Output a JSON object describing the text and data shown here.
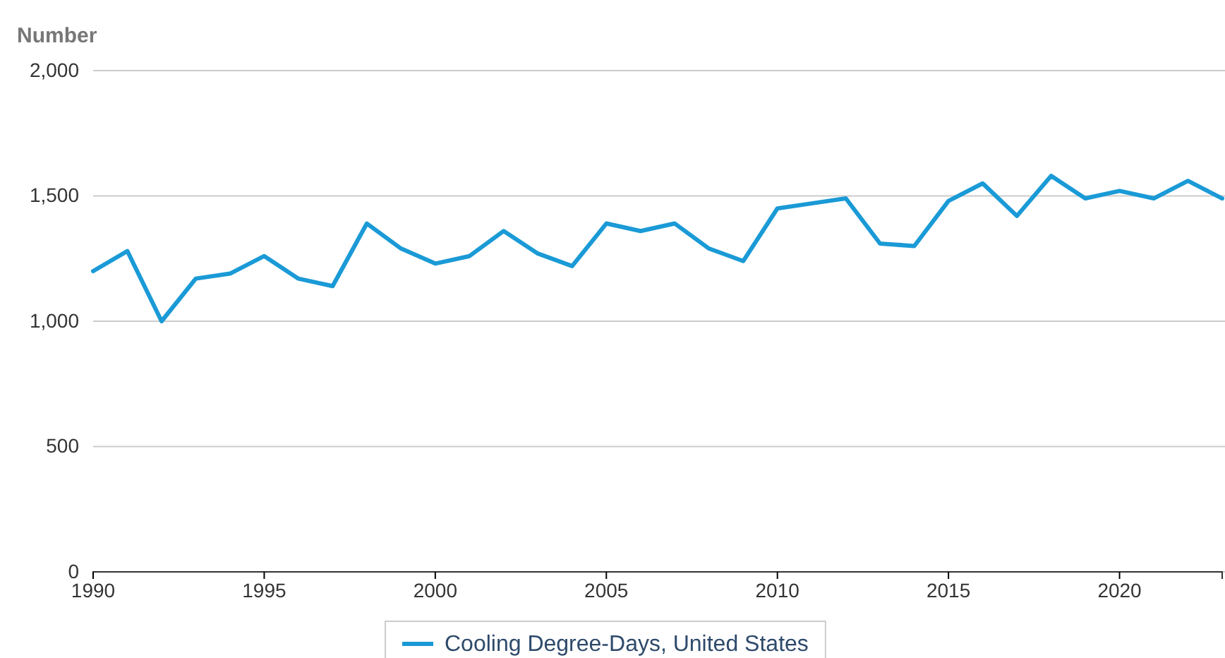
{
  "chart_data": {
    "type": "line",
    "ylabel": "Number",
    "x": [
      1990,
      1991,
      1992,
      1993,
      1994,
      1995,
      1996,
      1997,
      1998,
      1999,
      2000,
      2001,
      2002,
      2003,
      2004,
      2005,
      2006,
      2007,
      2008,
      2009,
      2010,
      2011,
      2012,
      2013,
      2014,
      2015,
      2016,
      2017,
      2018,
      2019,
      2020,
      2021,
      2022,
      2023
    ],
    "series": [
      {
        "name": "Cooling Degree-Days, United States",
        "color": "#1a9ad6",
        "values": [
          1200,
          1280,
          1000,
          1170,
          1190,
          1260,
          1170,
          1140,
          1390,
          1290,
          1230,
          1260,
          1360,
          1270,
          1220,
          1390,
          1360,
          1390,
          1290,
          1240,
          1450,
          1470,
          1490,
          1310,
          1300,
          1480,
          1550,
          1420,
          1580,
          1490,
          1520,
          1490,
          1560,
          1490
        ]
      }
    ],
    "xlim": [
      1990,
      2023
    ],
    "xticks": [
      1990,
      1995,
      2000,
      2005,
      2010,
      2015,
      2020
    ],
    "ylim": [
      0,
      2000
    ],
    "yticks": [
      {
        "value": 0,
        "label": "0"
      },
      {
        "value": 500,
        "label": "500"
      },
      {
        "value": 1000,
        "label": "1,000"
      },
      {
        "value": 1500,
        "label": "1,500"
      },
      {
        "value": 2000,
        "label": "2,000"
      }
    ],
    "grid": "y",
    "legend": "bottom",
    "line_style": "solid",
    "marker": "none"
  }
}
